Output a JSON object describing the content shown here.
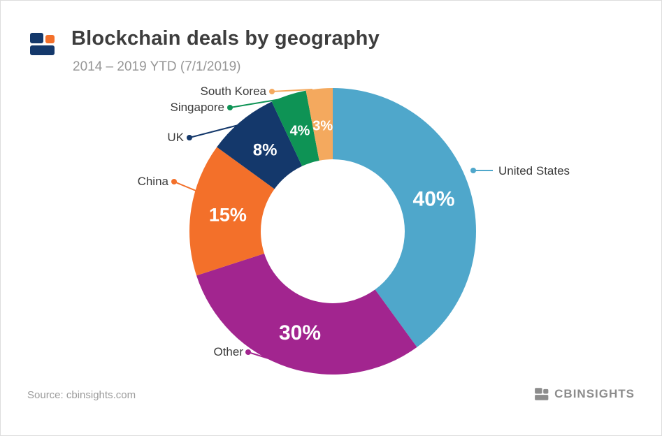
{
  "header": {
    "title": "Blockchain deals by geography",
    "subtitle": "2014 – 2019 YTD (7/1/2019)"
  },
  "footer": {
    "source": "Source: cbinsights.com",
    "brand": "CBINSIGHTS"
  },
  "brand_colors": {
    "blue": "#14386B",
    "orange": "#F3702A",
    "gray": "#8C8C8C"
  },
  "chart_data": {
    "type": "pie",
    "variant": "donut",
    "title": "Blockchain deals by geography",
    "subtitle": "2014 – 2019 YTD (7/1/2019)",
    "unit": "%",
    "start_angle_deg": 0,
    "direction": "clockwise",
    "legend_position": "callout-labels",
    "slices": [
      {
        "label": "United States",
        "value": 40,
        "value_label": "40%",
        "color": "#4FA7CB"
      },
      {
        "label": "Other",
        "value": 30,
        "value_label": "30%",
        "color": "#A2258F"
      },
      {
        "label": "China",
        "value": 15,
        "value_label": "15%",
        "color": "#F3702A"
      },
      {
        "label": "UK",
        "value": 8,
        "value_label": "8%",
        "color": "#14386B"
      },
      {
        "label": "Singapore",
        "value": 4,
        "value_label": "4%",
        "color": "#0E9355"
      },
      {
        "label": "South Korea",
        "value": 3,
        "value_label": "3%",
        "color": "#F4A95E"
      }
    ]
  }
}
